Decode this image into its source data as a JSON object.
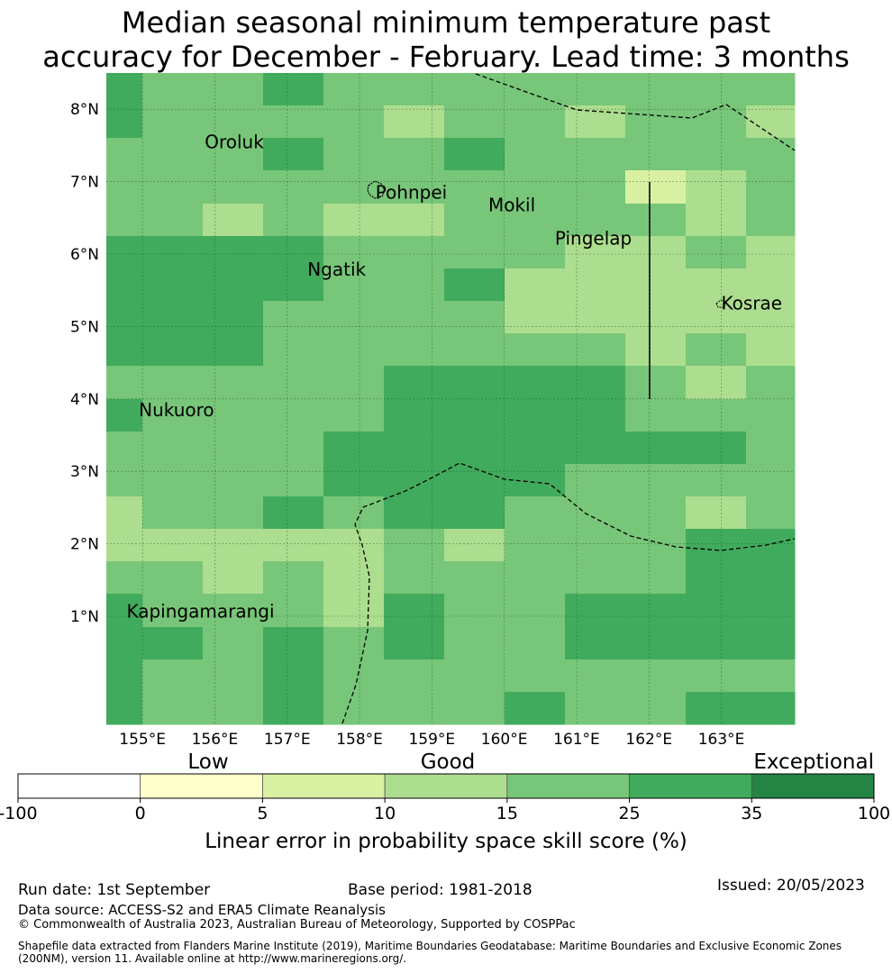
{
  "title": {
    "line1": "Median seasonal minimum temperature past",
    "line2": "accuracy for December - February. Lead time: 3 months"
  },
  "map": {
    "lon_labels": [
      "155°E",
      "156°E",
      "157°E",
      "158°E",
      "159°E",
      "160°E",
      "161°E",
      "162°E",
      "163°E"
    ],
    "lat_labels": [
      "8°N",
      "7°N",
      "6°N",
      "5°N",
      "4°N",
      "3°N",
      "2°N",
      "1°N"
    ],
    "places": [
      {
        "name": "Oroluk",
        "lon": 155.86,
        "lat": 7.55
      },
      {
        "name": "Pohnpei",
        "lon": 158.22,
        "lat": 6.85
      },
      {
        "name": "Mokil",
        "lon": 159.78,
        "lat": 6.68
      },
      {
        "name": "Pingelap",
        "lon": 160.7,
        "lat": 6.22
      },
      {
        "name": "Ngatik",
        "lon": 157.28,
        "lat": 5.79
      },
      {
        "name": "Kosrae",
        "lon": 163.0,
        "lat": 5.32
      },
      {
        "name": "Nukuoro",
        "lon": 154.95,
        "lat": 3.85
      },
      {
        "name": "Kapingamarangi",
        "lon": 154.78,
        "lat": 1.07
      }
    ],
    "grid_rows": [
      [
        5,
        4,
        4,
        5,
        4,
        4,
        4,
        4,
        4,
        4,
        4,
        4
      ],
      [
        5,
        4,
        4,
        4,
        4,
        3,
        4,
        4,
        3,
        4,
        4,
        3
      ],
      [
        4,
        4,
        4,
        5,
        4,
        4,
        5,
        4,
        4,
        4,
        4,
        4
      ],
      [
        4,
        4,
        4,
        4,
        4,
        4,
        4,
        4,
        4,
        2,
        3,
        4
      ],
      [
        4,
        4,
        3,
        4,
        3,
        3,
        4,
        4,
        4,
        4,
        3,
        4
      ],
      [
        5,
        5,
        5,
        5,
        4,
        4,
        4,
        4,
        3,
        3,
        4,
        3
      ],
      [
        5,
        5,
        5,
        5,
        4,
        4,
        5,
        3,
        3,
        3,
        3,
        3
      ],
      [
        5,
        5,
        5,
        4,
        4,
        4,
        4,
        3,
        3,
        3,
        3,
        3
      ],
      [
        5,
        5,
        5,
        4,
        4,
        4,
        4,
        4,
        4,
        3,
        4,
        3
      ],
      [
        4,
        4,
        4,
        4,
        4,
        5,
        5,
        5,
        5,
        4,
        3,
        4
      ],
      [
        5,
        4,
        4,
        4,
        4,
        5,
        5,
        5,
        5,
        4,
        4,
        4
      ],
      [
        4,
        4,
        4,
        4,
        5,
        5,
        5,
        5,
        5,
        5,
        5,
        4
      ],
      [
        4,
        4,
        4,
        4,
        5,
        5,
        5,
        5,
        4,
        4,
        4,
        4
      ],
      [
        3,
        4,
        4,
        5,
        4,
        5,
        5,
        4,
        4,
        4,
        3,
        4
      ],
      [
        3,
        3,
        3,
        3,
        3,
        4,
        3,
        4,
        4,
        4,
        5,
        5
      ],
      [
        4,
        4,
        3,
        4,
        3,
        4,
        4,
        4,
        4,
        4,
        5,
        5
      ],
      [
        5,
        4,
        4,
        4,
        3,
        5,
        4,
        4,
        5,
        5,
        5,
        5
      ],
      [
        5,
        5,
        4,
        5,
        4,
        5,
        4,
        4,
        5,
        5,
        5,
        5
      ],
      [
        5,
        4,
        4,
        5,
        4,
        4,
        4,
        4,
        4,
        4,
        4,
        4
      ],
      [
        5,
        4,
        4,
        5,
        4,
        4,
        4,
        5,
        4,
        4,
        5,
        5
      ]
    ]
  },
  "legend": {
    "category_labels": [
      "Low",
      "Good",
      "Exceptional"
    ],
    "ticks": [
      "-100",
      "0",
      "5",
      "10",
      "15",
      "25",
      "35",
      "100"
    ],
    "colors": [
      "#ffffff",
      "#ffffcc",
      "#d9f0a3",
      "#addd8e",
      "#78c679",
      "#41ab5d",
      "#238443"
    ],
    "axis_label": "Linear error in probability space skill score (%)"
  },
  "footer": {
    "run_date": "Run date: 1st September",
    "base_period": "Base period: 1981-2018",
    "issued": "Issued: 20/05/2023",
    "data_source": "Data source: ACCESS-S2 and ERA5 Climate Reanalysis",
    "copyright": "© Commonwealth of Australia 2023, Australian Bureau of Meteorology, Supported by COSPPac",
    "shapefile_line1": "Shapefile data extracted from Flanders Marine Institute (2019), Maritime Boundaries Geodatabase: Maritime Boundaries and Exclusive Economic Zones",
    "shapefile_line2": "(200NM), version 11. Available online at http://www.marineregions.org/."
  }
}
